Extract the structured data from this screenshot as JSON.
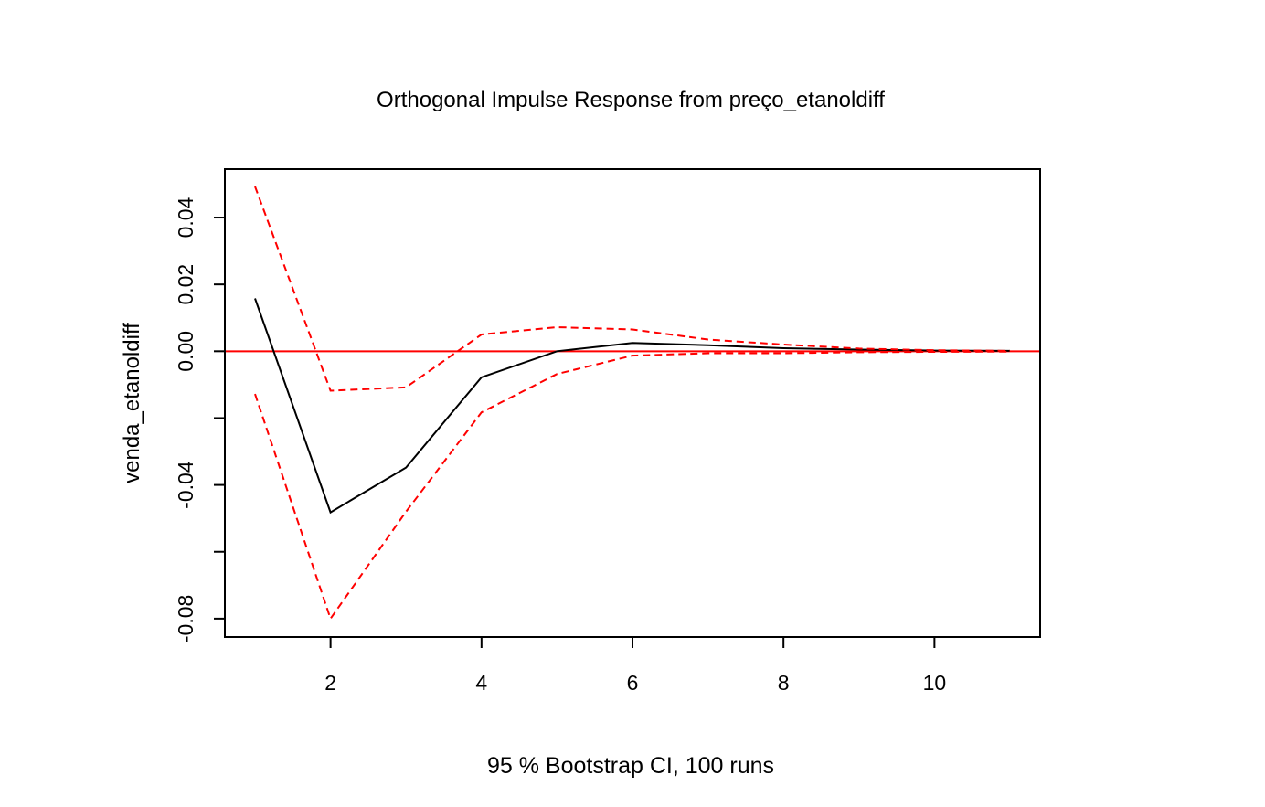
{
  "chart_data": {
    "type": "line",
    "title": "Orthogonal Impulse Response from preço_etanoldiff",
    "xlabel": "95 % Bootstrap CI,  100 runs",
    "ylabel": "venda_etanoldiff",
    "xlim": [
      0.6,
      11.4
    ],
    "ylim": [
      -0.0855,
      0.0545
    ],
    "x_ticks": [
      2,
      4,
      6,
      8,
      10
    ],
    "x_tick_labels": [
      "2",
      "4",
      "6",
      "8",
      "10"
    ],
    "y_ticks": [
      -0.08,
      -0.06,
      -0.04,
      -0.02,
      0.0,
      0.02,
      0.04
    ],
    "y_tick_labels": [
      "-0.08",
      "",
      "-0.04",
      "",
      "0.00",
      "0.02",
      "0.04"
    ],
    "grid": false,
    "legend": "none",
    "reference_line": {
      "y": 0,
      "color": "#ff0000"
    },
    "x": [
      1,
      2,
      3,
      4,
      5,
      6,
      7,
      8,
      9,
      10,
      11
    ],
    "series": [
      {
        "role": "response",
        "values": [
          0.0158,
          -0.0482,
          -0.0348,
          -0.0078,
          0.0,
          0.0025,
          0.0018,
          0.0009,
          0.0005,
          0.0002,
          0.0001
        ],
        "color": "#000000",
        "dash": "solid"
      },
      {
        "role": "upper",
        "values": [
          0.0493,
          -0.0118,
          -0.0108,
          0.005,
          0.0072,
          0.0065,
          0.0035,
          0.002,
          0.0008,
          0.0003,
          0.0001
        ],
        "color": "#ff0000",
        "dash": "dashed"
      },
      {
        "role": "lower",
        "values": [
          -0.0128,
          -0.08,
          -0.048,
          -0.0183,
          -0.0068,
          -0.0013,
          -0.0006,
          -0.0006,
          -0.0003,
          -0.0002,
          -0.0001
        ],
        "color": "#ff0000",
        "dash": "dashed"
      }
    ]
  }
}
